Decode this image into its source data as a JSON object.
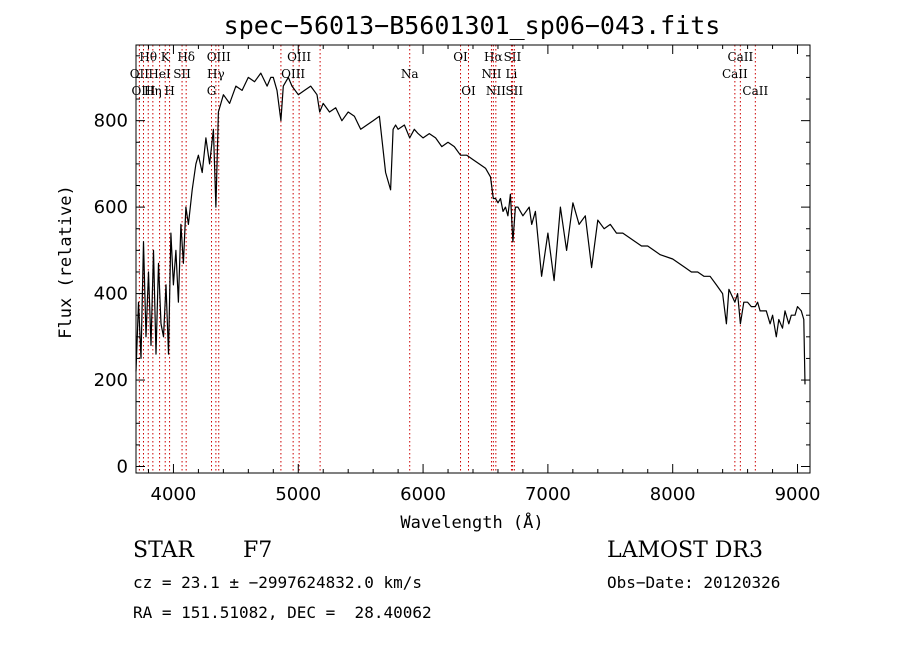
{
  "chart_data": {
    "type": "line",
    "title": "spec−56013−B5601301_sp06−043.fits",
    "xlabel": "Wavelength (Å)",
    "ylabel": "Flux (relative)",
    "xlim": [
      3700,
      9100
    ],
    "ylim": [
      -15,
      975
    ],
    "x_ticks": [
      4000,
      5000,
      6000,
      7000,
      8000,
      9000
    ],
    "y_ticks": [
      0,
      200,
      400,
      600,
      800
    ],
    "series": [
      {
        "name": "flux",
        "x": [
          3700,
          3720,
          3740,
          3760,
          3780,
          3800,
          3820,
          3840,
          3860,
          3880,
          3900,
          3920,
          3940,
          3960,
          3980,
          4000,
          4020,
          4040,
          4060,
          4080,
          4100,
          4120,
          4150,
          4180,
          4200,
          4230,
          4260,
          4290,
          4320,
          4340,
          4360,
          4400,
          4450,
          4500,
          4550,
          4600,
          4650,
          4700,
          4750,
          4780,
          4800,
          4830,
          4861,
          4880,
          4920,
          4950,
          5000,
          5050,
          5100,
          5150,
          5172,
          5200,
          5250,
          5300,
          5350,
          5400,
          5450,
          5500,
          5550,
          5600,
          5650,
          5700,
          5740,
          5760,
          5780,
          5800,
          5850,
          5893,
          5930,
          5960,
          6000,
          6050,
          6100,
          6150,
          6200,
          6250,
          6300,
          6350,
          6400,
          6450,
          6500,
          6540,
          6563,
          6580,
          6600,
          6620,
          6640,
          6660,
          6680,
          6700,
          6720,
          6740,
          6760,
          6800,
          6850,
          6870,
          6900,
          6950,
          7000,
          7050,
          7100,
          7150,
          7200,
          7250,
          7300,
          7350,
          7400,
          7450,
          7500,
          7550,
          7600,
          7650,
          7700,
          7750,
          7800,
          7850,
          7900,
          8000,
          8100,
          8150,
          8200,
          8250,
          8300,
          8350,
          8400,
          8430,
          8450,
          8498,
          8520,
          8542,
          8570,
          8600,
          8630,
          8662,
          8680,
          8700,
          8750,
          8780,
          8800,
          8830,
          8850,
          8880,
          8900,
          8930,
          8950,
          8980,
          9000,
          9030,
          9050,
          9060
        ],
        "y": [
          220,
          380,
          250,
          520,
          300,
          450,
          280,
          500,
          260,
          470,
          330,
          300,
          420,
          260,
          540,
          420,
          500,
          380,
          560,
          470,
          600,
          560,
          640,
          700,
          720,
          680,
          760,
          700,
          780,
          600,
          820,
          860,
          840,
          880,
          870,
          900,
          890,
          910,
          880,
          900,
          900,
          870,
          800,
          880,
          900,
          880,
          860,
          870,
          880,
          860,
          820,
          840,
          820,
          830,
          800,
          820,
          810,
          780,
          790,
          800,
          810,
          680,
          640,
          780,
          790,
          780,
          790,
          760,
          780,
          770,
          760,
          770,
          760,
          740,
          750,
          740,
          720,
          720,
          710,
          700,
          690,
          670,
          620,
          620,
          610,
          620,
          590,
          600,
          580,
          630,
          520,
          600,
          600,
          580,
          600,
          560,
          590,
          440,
          540,
          430,
          600,
          500,
          610,
          560,
          580,
          460,
          570,
          550,
          560,
          540,
          540,
          530,
          520,
          510,
          510,
          500,
          490,
          480,
          460,
          450,
          450,
          440,
          440,
          420,
          400,
          330,
          410,
          380,
          400,
          330,
          380,
          380,
          370,
          370,
          380,
          360,
          360,
          330,
          350,
          300,
          340,
          320,
          360,
          330,
          350,
          350,
          370,
          360,
          340,
          190
        ]
      }
    ],
    "spectral_lines": [
      {
        "label": "Hθ",
        "wl": 3798,
        "row": 0
      },
      {
        "label": "OII",
        "wl": 3727,
        "row": 1
      },
      {
        "label": "OIII",
        "wl": 3760,
        "row": 2
      },
      {
        "label": "K",
        "wl": 3934,
        "row": 0
      },
      {
        "label": "HeI",
        "wl": 3889,
        "row": 1
      },
      {
        "label": "Hη",
        "wl": 3835,
        "row": 2
      },
      {
        "label": "Hδ",
        "wl": 4102,
        "row": 0
      },
      {
        "label": "SII",
        "wl": 4069,
        "row": 1
      },
      {
        "label": "H",
        "wl": 3969,
        "row": 2
      },
      {
        "label": "OIII",
        "wl": 4363,
        "row": 0
      },
      {
        "label": "Hγ",
        "wl": 4340,
        "row": 1
      },
      {
        "label": "G",
        "wl": 4305,
        "row": 2
      },
      {
        "label": "OIII",
        "wl": 5007,
        "row": 0
      },
      {
        "label": "OIII",
        "wl": 4959,
        "row": 1
      },
      {
        "label": "",
        "wl": 4861,
        "row": -1
      },
      {
        "label": "",
        "wl": 5175,
        "row": -1
      },
      {
        "label": "Na",
        "wl": 5893,
        "row": 1
      },
      {
        "label": "OI",
        "wl": 6300,
        "row": 0
      },
      {
        "label": "OI",
        "wl": 6364,
        "row": 2
      },
      {
        "label": "Hα",
        "wl": 6563,
        "row": 0
      },
      {
        "label": "NII",
        "wl": 6548,
        "row": 1
      },
      {
        "label": "NII",
        "wl": 6583,
        "row": 2
      },
      {
        "label": "SII",
        "wl": 6716,
        "row": 0
      },
      {
        "label": "Li",
        "wl": 6708,
        "row": 1
      },
      {
        "label": "SII",
        "wl": 6731,
        "row": 2
      },
      {
        "label": "CaII",
        "wl": 8542,
        "row": 0
      },
      {
        "label": "CaII",
        "wl": 8498,
        "row": 1
      },
      {
        "label": "CaII",
        "wl": 8662,
        "row": 2
      }
    ],
    "colors": {
      "line": "#000000",
      "marker": "#cc0000",
      "axis": "#000000"
    }
  },
  "info": {
    "object_class": "STAR",
    "subclass": "F7",
    "survey": "LAMOST DR3",
    "redshift": "cz = 23.1 ± −2997624832.0 km/s",
    "obs_date": "Obs−Date: 20120326",
    "coords": "RA = 151.51082, DEC =  28.40062"
  }
}
